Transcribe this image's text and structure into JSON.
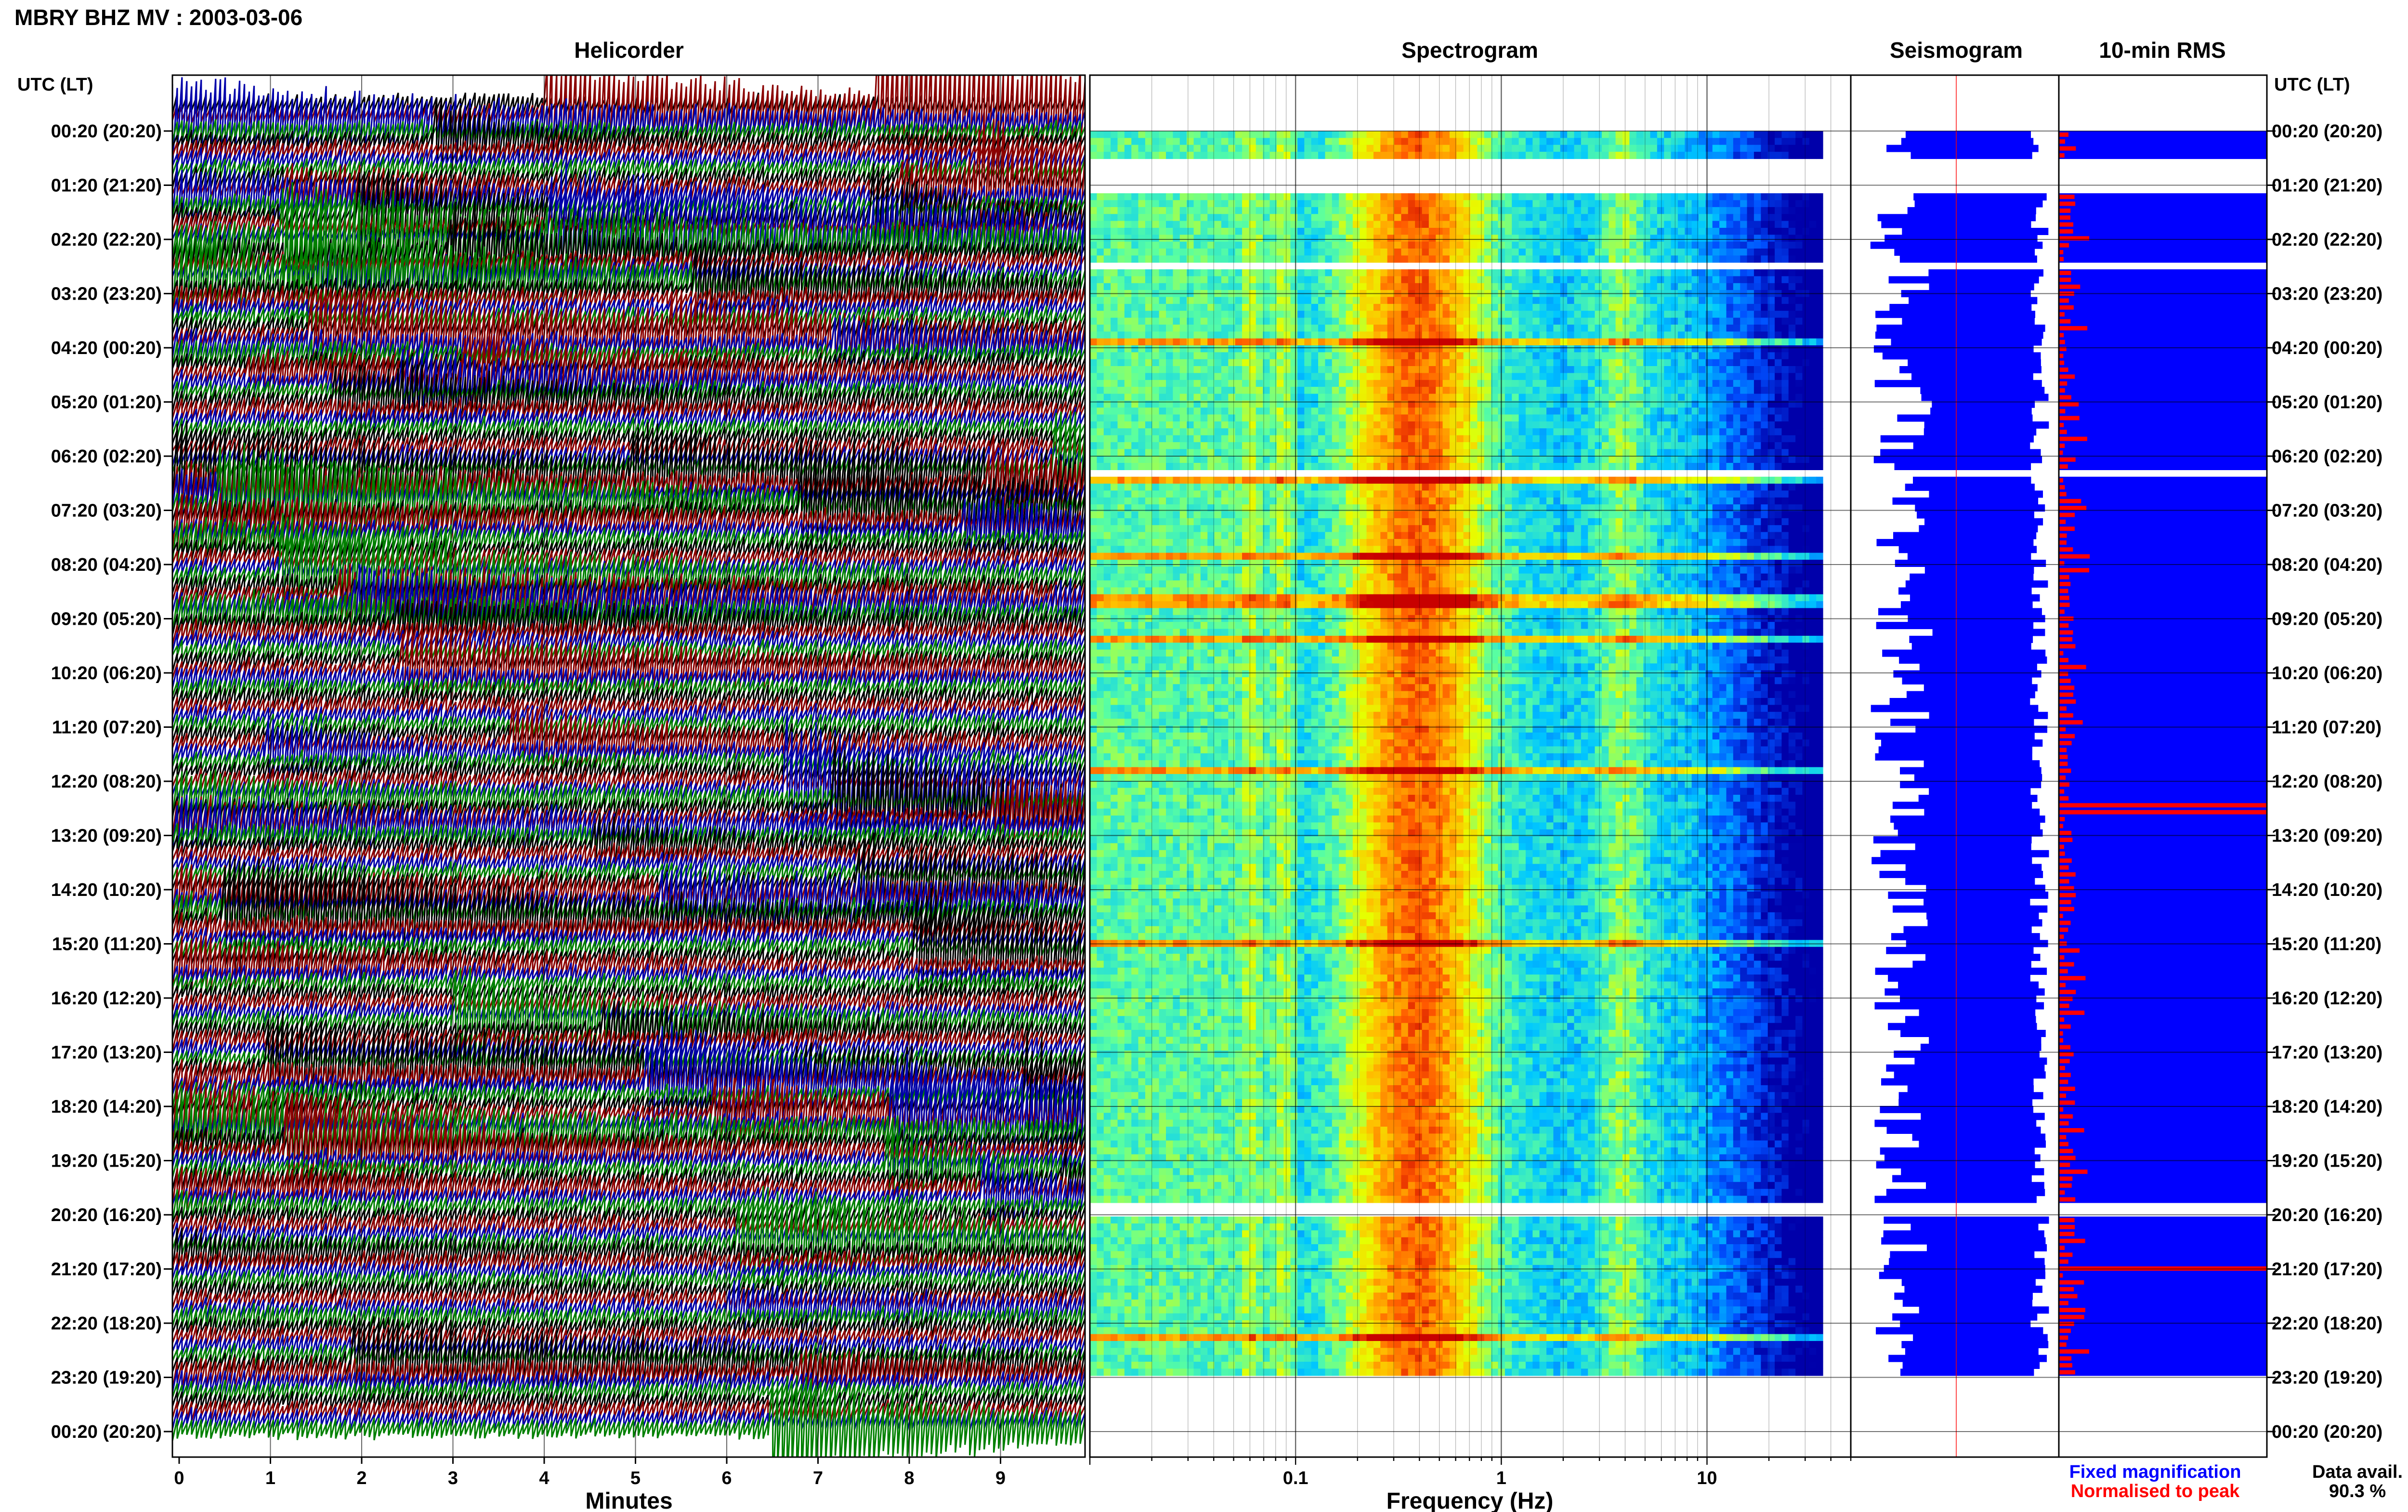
{
  "figure": {
    "title": "MBRY BHZ MV : 2003-03-06",
    "panel_titles": {
      "helicorder": "Helicorder",
      "spectrogram": "Spectrogram",
      "seismogram": "Seismogram",
      "rms": "10-min RMS"
    },
    "time_axis_header": "UTC (LT)",
    "legend": {
      "fixed": "Fixed magnification",
      "normalised": "Normalised to peak",
      "fixed_color": "#0000ff",
      "normalised_color": "#ff0000"
    },
    "data_avail": {
      "label": "Data avail.",
      "value": "90.3 %"
    }
  },
  "chart_data": [
    {
      "type": "heatmap",
      "panel": "helicorder",
      "title": "Helicorder",
      "xlabel": "Minutes",
      "x_ticks": [
        "0",
        "1",
        "2",
        "3",
        "4",
        "5",
        "6",
        "7",
        "8",
        "9"
      ],
      "xlim": [
        0,
        10
      ],
      "y_ticks": [
        "00:20 (20:20)",
        "01:20 (21:20)",
        "02:20 (22:20)",
        "03:20 (23:20)",
        "04:20 (00:20)",
        "05:20 (01:20)",
        "06:20 (02:20)",
        "07:20 (03:20)",
        "08:20 (04:20)",
        "09:20 (05:20)",
        "10:20 (06:20)",
        "11:20 (07:20)",
        "12:20 (08:20)",
        "13:20 (09:20)",
        "14:20 (10:20)",
        "15:20 (11:20)",
        "16:20 (12:20)",
        "17:20 (13:20)",
        "18:20 (14:20)",
        "19:20 (15:20)",
        "20:20 (16:20)",
        "21:20 (17:20)",
        "22:20 (18:20)",
        "23:20 (19:20)",
        "00:20 (20:20)"
      ],
      "trace_colors": [
        "#000000",
        "#8b0000",
        "#0000aa",
        "#008000"
      ]
    },
    {
      "type": "heatmap",
      "panel": "spectrogram",
      "title": "Spectrogram",
      "xlabel": "Frequency (Hz)",
      "x_scale": "log",
      "xlim": [
        0.01,
        50
      ],
      "x_ticks": [
        {
          "value": 0.1,
          "label": "0.1"
        },
        {
          "value": 1,
          "label": "1"
        },
        {
          "value": 10,
          "label": "10"
        }
      ],
      "data_gaps_utc_hours": [
        [
          0.9,
          1.45
        ],
        [
          2.7,
          2.9
        ],
        [
          6.55,
          6.75
        ],
        [
          20.15,
          20.35
        ]
      ],
      "peak_band_hz": [
        0.25,
        0.6
      ],
      "secondary_band_hz": [
        3,
        5
      ]
    },
    {
      "type": "area",
      "panel": "seismogram",
      "title": "Seismogram",
      "series": [
        {
          "name": "Fixed magnification",
          "color": "#0000ff"
        },
        {
          "name": "Normalised to peak",
          "color": "#ff0000"
        }
      ]
    },
    {
      "type": "bar",
      "panel": "rms",
      "title": "10-min RMS",
      "series": [
        {
          "name": "Fixed magnification",
          "color": "#0000ff"
        },
        {
          "name": "Normalised to peak",
          "color": "#ff0000"
        }
      ],
      "peaks_utc_hours": [
        12.85,
        21.3
      ],
      "data_gaps_utc_hours": [
        [
          0.9,
          1.45
        ],
        [
          2.7,
          2.9
        ],
        [
          6.55,
          6.75
        ],
        [
          20.15,
          20.35
        ]
      ]
    }
  ]
}
